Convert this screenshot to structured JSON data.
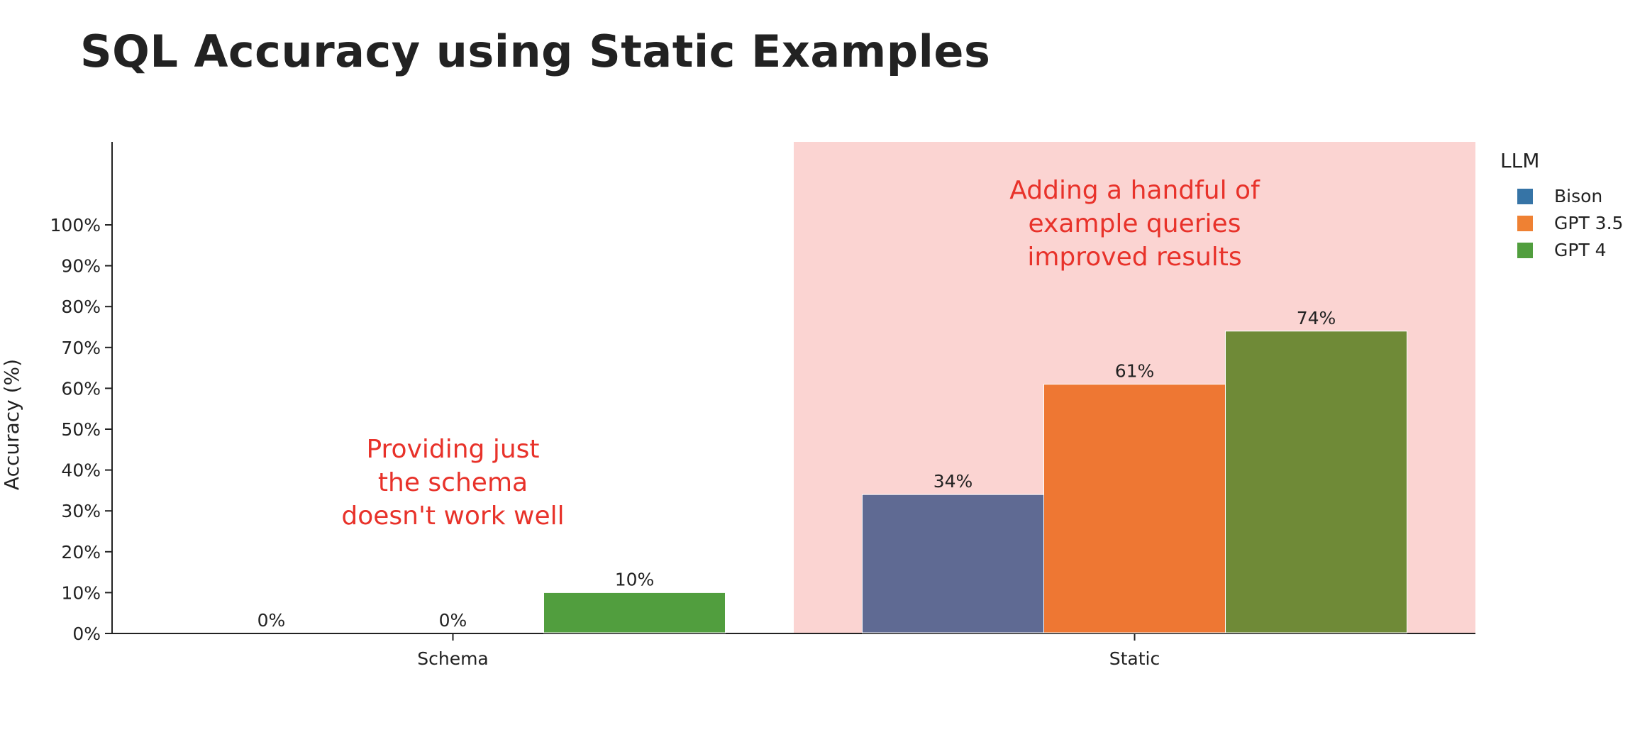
{
  "chart_data": {
    "type": "bar",
    "title": "SQL Accuracy using Static Examples",
    "xlabel": "",
    "ylabel": "Accuracy (%)",
    "categories": [
      "Schema",
      "Static"
    ],
    "ylim": [
      0,
      100
    ],
    "ytick_values": [
      0,
      10,
      20,
      30,
      40,
      50,
      60,
      70,
      80,
      90,
      100
    ],
    "ytick_labels": [
      "0%",
      "10%",
      "20%",
      "30%",
      "40%",
      "50%",
      "60%",
      "70%",
      "80%",
      "90%",
      "100%"
    ],
    "legend": {
      "title": "LLM",
      "position": "top-right"
    },
    "series": [
      {
        "name": "Bison",
        "values": [
          0,
          34
        ],
        "labels": [
          "0%",
          "34%"
        ],
        "color": "#5f6a93",
        "legend_color": "#3674a6"
      },
      {
        "name": "GPT 3.5",
        "values": [
          0,
          61
        ],
        "labels": [
          "0%",
          "61%"
        ],
        "color": "#ee7733",
        "legend_color": "#ef8133"
      },
      {
        "name": "GPT 4",
        "values": [
          10,
          74
        ],
        "labels": [
          "10%",
          "74%"
        ],
        "color": "#6f8a37",
        "legend_color": "#519e3e"
      }
    ],
    "highlight": {
      "category": "Static",
      "color": "#fbd4d2"
    },
    "schema_gpt4_color": "#519e3e",
    "annotations": [
      {
        "category": "Schema",
        "lines": [
          "Providing just",
          "the schema",
          "doesn't work well"
        ],
        "color": "#e8322a"
      },
      {
        "category": "Static",
        "lines": [
          "Adding a handful of",
          "example queries",
          "improved results"
        ],
        "color": "#e8322a"
      }
    ],
    "grid": false
  }
}
